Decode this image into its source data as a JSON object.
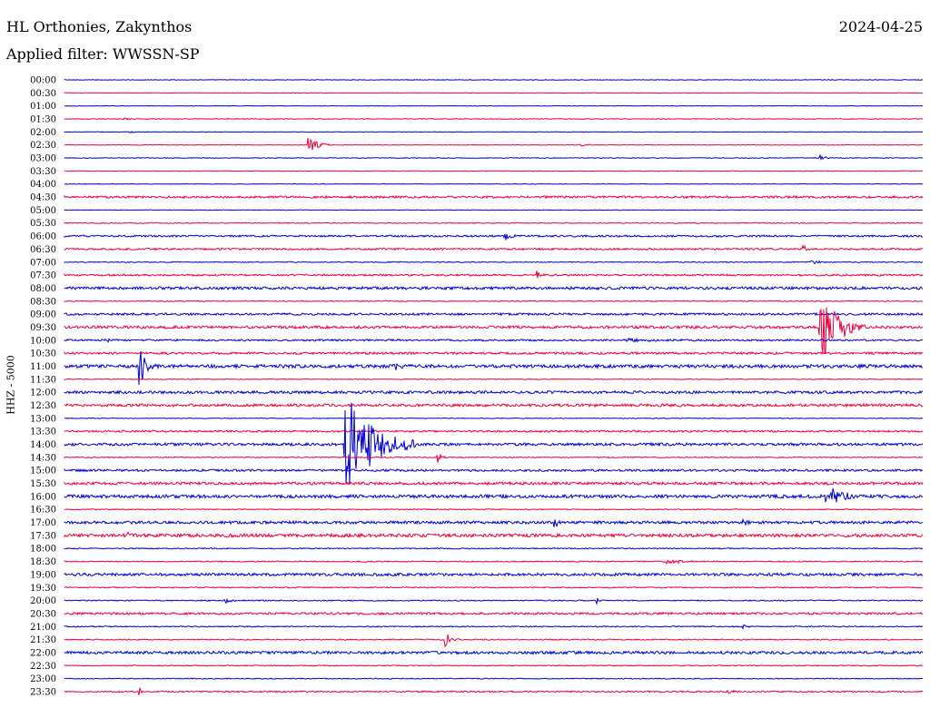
{
  "header": {
    "station": "HL Orthonies, Zakynthos",
    "date": "2024-04-25",
    "filter": "Applied filter: WWSSN-SP"
  },
  "channel_label": "HHZ - 5000",
  "colors": {
    "even_row": "#0000cc",
    "odd_row": "#e8003c",
    "background": "#ffffff"
  },
  "chart_data": {
    "type": "line",
    "title": "HL Orthonies, Zakynthos",
    "subtitle": "Applied filter: WWSSN-SP",
    "ylabel": "HHZ - 5000",
    "row_minutes": 30,
    "row_count": 48,
    "row_labels": [
      "00:00",
      "00:30",
      "01:00",
      "01:30",
      "02:00",
      "02:30",
      "03:00",
      "03:30",
      "04:00",
      "04:30",
      "05:00",
      "05:30",
      "06:00",
      "06:30",
      "07:00",
      "07:30",
      "08:00",
      "08:30",
      "09:00",
      "09:30",
      "10:00",
      "10:30",
      "11:00",
      "11:30",
      "12:00",
      "12:30",
      "13:00",
      "13:30",
      "14:00",
      "14:30",
      "15:00",
      "15:30",
      "16:00",
      "16:30",
      "17:00",
      "17:30",
      "18:00",
      "18:30",
      "19:00",
      "19:30",
      "20:00",
      "20:30",
      "21:00",
      "21:30",
      "22:00",
      "22:30",
      "23:00",
      "23:30"
    ],
    "noise_level": [
      0.3,
      0.3,
      0.3,
      0.4,
      0.3,
      0.3,
      0.4,
      0.3,
      0.3,
      1.2,
      0.3,
      0.5,
      1.0,
      1.0,
      0.5,
      1.0,
      1.5,
      0.5,
      1.2,
      1.5,
      1.0,
      1.2,
      1.8,
      0.4,
      1.5,
      1.5,
      0.4,
      1.0,
      1.5,
      0.5,
      1.2,
      1.5,
      1.8,
      0.5,
      1.5,
      1.8,
      0.6,
      0.6,
      1.5,
      0.6,
      0.6,
      1.2,
      0.6,
      0.6,
      1.5,
      0.5,
      0.5,
      0.8
    ],
    "events": [
      {
        "row": 3,
        "minute": 2.0,
        "amplitude": 1.5,
        "duration_min": 1.3
      },
      {
        "row": 4,
        "minute": 2.3,
        "amplitude": 3,
        "duration_min": 0.2
      },
      {
        "row": 5,
        "minute": 8.5,
        "amplitude": 9,
        "duration_min": 1.0
      },
      {
        "row": 5,
        "minute": 18.0,
        "amplitude": 1.5,
        "duration_min": 0.8
      },
      {
        "row": 6,
        "minute": 26.4,
        "amplitude": 4,
        "duration_min": 0.5
      },
      {
        "row": 12,
        "minute": 15.4,
        "amplitude": 9,
        "duration_min": 0.4
      },
      {
        "row": 13,
        "minute": 25.8,
        "amplitude": 5,
        "duration_min": 0.4
      },
      {
        "row": 14,
        "minute": 26.1,
        "amplitude": 5,
        "duration_min": 0.5
      },
      {
        "row": 15,
        "minute": 16.5,
        "amplitude": 6,
        "duration_min": 0.4
      },
      {
        "row": 19,
        "minute": 26.4,
        "amplitude": 48,
        "duration_min": 1.6
      },
      {
        "row": 20,
        "minute": 1.4,
        "amplitude": 4,
        "duration_min": 0.5
      },
      {
        "row": 20,
        "minute": 19.6,
        "amplitude": 3,
        "duration_min": 1.8
      },
      {
        "row": 22,
        "minute": 2.6,
        "amplitude": 25,
        "duration_min": 0.7
      },
      {
        "row": 22,
        "minute": 11.5,
        "amplitude": 8,
        "duration_min": 0.4
      },
      {
        "row": 28,
        "minute": 9.8,
        "amplitude": 70,
        "duration_min": 2.5
      },
      {
        "row": 29,
        "minute": 13.0,
        "amplitude": 9,
        "duration_min": 0.4
      },
      {
        "row": 32,
        "minute": 26.6,
        "amplitude": 20,
        "duration_min": 1.2
      },
      {
        "row": 34,
        "minute": 17.1,
        "amplitude": 5,
        "duration_min": 0.6
      },
      {
        "row": 34,
        "minute": 23.7,
        "amplitude": 3,
        "duration_min": 0.8
      },
      {
        "row": 35,
        "minute": 2.2,
        "amplitude": 7,
        "duration_min": 0.5
      },
      {
        "row": 37,
        "minute": 21.0,
        "amplitude": 3,
        "duration_min": 1.6
      },
      {
        "row": 40,
        "minute": 5.6,
        "amplitude": 4,
        "duration_min": 0.5
      },
      {
        "row": 40,
        "minute": 18.6,
        "amplitude": 4,
        "duration_min": 0.2
      },
      {
        "row": 42,
        "minute": 23.7,
        "amplitude": 3,
        "duration_min": 0.4
      },
      {
        "row": 43,
        "minute": 13.3,
        "amplitude": 9,
        "duration_min": 0.5
      },
      {
        "row": 47,
        "minute": 2.6,
        "amplitude": 5,
        "duration_min": 0.3
      },
      {
        "row": 47,
        "minute": 23.2,
        "amplitude": 6,
        "duration_min": 0.4
      }
    ]
  }
}
